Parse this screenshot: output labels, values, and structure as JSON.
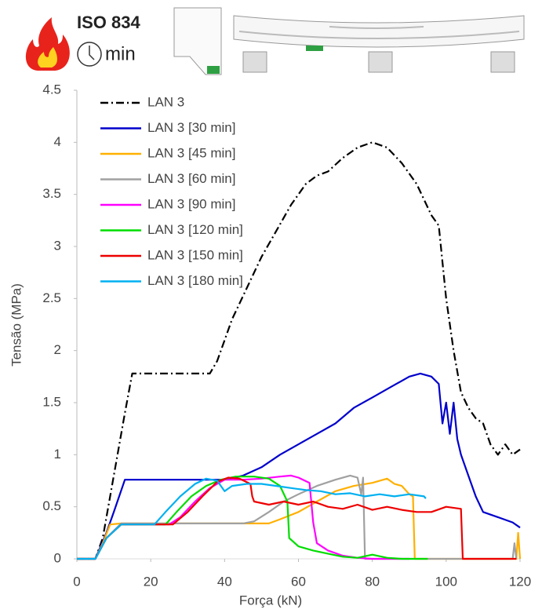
{
  "chart_data": {
    "type": "line",
    "annotations": [
      "ISO 834",
      "min"
    ],
    "x_label": "Força (kN)",
    "y_label": "Tensão (MPa)",
    "xlim": [
      0,
      120
    ],
    "xticks": [
      0,
      20,
      40,
      60,
      80,
      100,
      120
    ],
    "ylim": [
      0,
      4.5
    ],
    "yticks": [
      0,
      0.5,
      1,
      1.5,
      2,
      2.5,
      3,
      3.5,
      4,
      4.5
    ],
    "grid": false,
    "legend": "upper-left",
    "series": [
      {
        "name": "LAN 3",
        "color": "#000000",
        "linestyle": "dashdot",
        "x": [
          0,
          5,
          7,
          10,
          13,
          15,
          20,
          30,
          36,
          38,
          42,
          46,
          50,
          54,
          58,
          62,
          65,
          68,
          72,
          76,
          80,
          84,
          88,
          92,
          96,
          98,
          100,
          102,
          104,
          106,
          108,
          110,
          112,
          114,
          116,
          118,
          120
        ],
        "values": [
          0,
          0,
          0.2,
          0.8,
          1.4,
          1.78,
          1.78,
          1.78,
          1.78,
          1.9,
          2.3,
          2.6,
          2.9,
          3.15,
          3.4,
          3.6,
          3.68,
          3.72,
          3.85,
          3.95,
          4.0,
          3.95,
          3.8,
          3.6,
          3.3,
          3.2,
          2.5,
          2.0,
          1.6,
          1.45,
          1.35,
          1.3,
          1.1,
          1.0,
          1.1,
          1.0,
          1.05
        ]
      },
      {
        "name": "LAN 3 [30 min]",
        "color": "#0000cc",
        "linestyle": "solid",
        "x": [
          0,
          5,
          8,
          10,
          13,
          20,
          35,
          40,
          45,
          50,
          55,
          60,
          65,
          70,
          75,
          80,
          85,
          90,
          93,
          96,
          98,
          99,
          100,
          101,
          102,
          103,
          104,
          106,
          108,
          110,
          114,
          118,
          120
        ],
        "values": [
          0,
          0,
          0.25,
          0.45,
          0.76,
          0.76,
          0.76,
          0.76,
          0.8,
          0.88,
          1.0,
          1.1,
          1.2,
          1.3,
          1.45,
          1.55,
          1.65,
          1.75,
          1.78,
          1.75,
          1.68,
          1.3,
          1.5,
          1.2,
          1.5,
          1.15,
          1.0,
          0.8,
          0.6,
          0.45,
          0.4,
          0.35,
          0.3
        ]
      },
      {
        "name": "LAN 3 [45 min]",
        "color": "#ffb000",
        "linestyle": "solid",
        "x": [
          0,
          5,
          7,
          9,
          12,
          30,
          45,
          52,
          55,
          60,
          65,
          70,
          75,
          80,
          84,
          86,
          88,
          90,
          91,
          91.5,
          119,
          119.5,
          120
        ],
        "values": [
          0,
          0,
          0.15,
          0.33,
          0.34,
          0.34,
          0.34,
          0.34,
          0.38,
          0.45,
          0.55,
          0.65,
          0.7,
          0.73,
          0.77,
          0.72,
          0.7,
          0.62,
          0.6,
          0,
          0,
          0.25,
          0
        ]
      },
      {
        "name": "LAN 3 [60 min]",
        "color": "#a0a0a0",
        "linestyle": "solid",
        "x": [
          0,
          5,
          8,
          12,
          30,
          45,
          48,
          52,
          56,
          60,
          65,
          70,
          74,
          76,
          77,
          77.5,
          78,
          118,
          118.5,
          119
        ],
        "values": [
          0,
          0,
          0.2,
          0.34,
          0.34,
          0.34,
          0.36,
          0.45,
          0.55,
          0.62,
          0.7,
          0.76,
          0.8,
          0.78,
          0.62,
          0.78,
          0,
          0,
          0.15,
          0
        ]
      },
      {
        "name": "LAN 3 [90 min]",
        "color": "#ff00ff",
        "linestyle": "solid",
        "x": [
          0,
          5,
          8,
          12,
          25,
          28,
          32,
          36,
          40,
          45,
          50,
          55,
          58,
          60,
          63,
          64,
          65,
          68,
          72,
          76,
          80,
          90
        ],
        "values": [
          0,
          0,
          0.2,
          0.33,
          0.33,
          0.4,
          0.55,
          0.68,
          0.76,
          0.76,
          0.77,
          0.79,
          0.8,
          0.78,
          0.73,
          0.35,
          0.15,
          0.08,
          0.03,
          0.01,
          0,
          0
        ]
      },
      {
        "name": "LAN 3 [120 min]",
        "color": "#00dd00",
        "linestyle": "solid",
        "x": [
          0,
          5,
          8,
          12,
          24,
          27,
          31,
          35,
          39,
          43,
          48,
          52,
          55,
          57,
          57.5,
          60,
          64,
          68,
          72,
          76,
          80,
          84,
          88,
          95
        ],
        "values": [
          0,
          0,
          0.2,
          0.33,
          0.33,
          0.45,
          0.6,
          0.7,
          0.76,
          0.79,
          0.79,
          0.77,
          0.7,
          0.55,
          0.2,
          0.12,
          0.08,
          0.05,
          0.02,
          0.01,
          0.04,
          0.01,
          0,
          0
        ]
      },
      {
        "name": "LAN 3 [150 min]",
        "color": "#ee0000",
        "linestyle": "solid",
        "x": [
          0,
          5,
          8,
          12,
          26,
          30,
          34,
          38,
          41,
          44,
          47,
          47.5,
          48,
          52,
          56,
          60,
          64,
          68,
          72,
          76,
          80,
          84,
          88,
          92,
          96,
          100,
          104,
          104.5,
          110,
          119
        ],
        "values": [
          0,
          0,
          0.2,
          0.33,
          0.33,
          0.45,
          0.6,
          0.74,
          0.78,
          0.77,
          0.72,
          0.6,
          0.55,
          0.52,
          0.55,
          0.52,
          0.55,
          0.5,
          0.48,
          0.52,
          0.47,
          0.5,
          0.47,
          0.45,
          0.45,
          0.5,
          0.48,
          0,
          0,
          0
        ]
      },
      {
        "name": "LAN 3 [180 min]",
        "color": "#00b0f0",
        "linestyle": "solid",
        "x": [
          0,
          5,
          8,
          12,
          21,
          24,
          28,
          32,
          35,
          38,
          40,
          42,
          46,
          50,
          54,
          58,
          62,
          66,
          70,
          74,
          78,
          82,
          86,
          90,
          94,
          94.5
        ],
        "values": [
          0,
          0,
          0.2,
          0.33,
          0.33,
          0.45,
          0.6,
          0.72,
          0.77,
          0.75,
          0.65,
          0.7,
          0.72,
          0.72,
          0.7,
          0.68,
          0.66,
          0.65,
          0.62,
          0.63,
          0.6,
          0.62,
          0.6,
          0.62,
          0.6,
          0.58
        ]
      }
    ]
  }
}
